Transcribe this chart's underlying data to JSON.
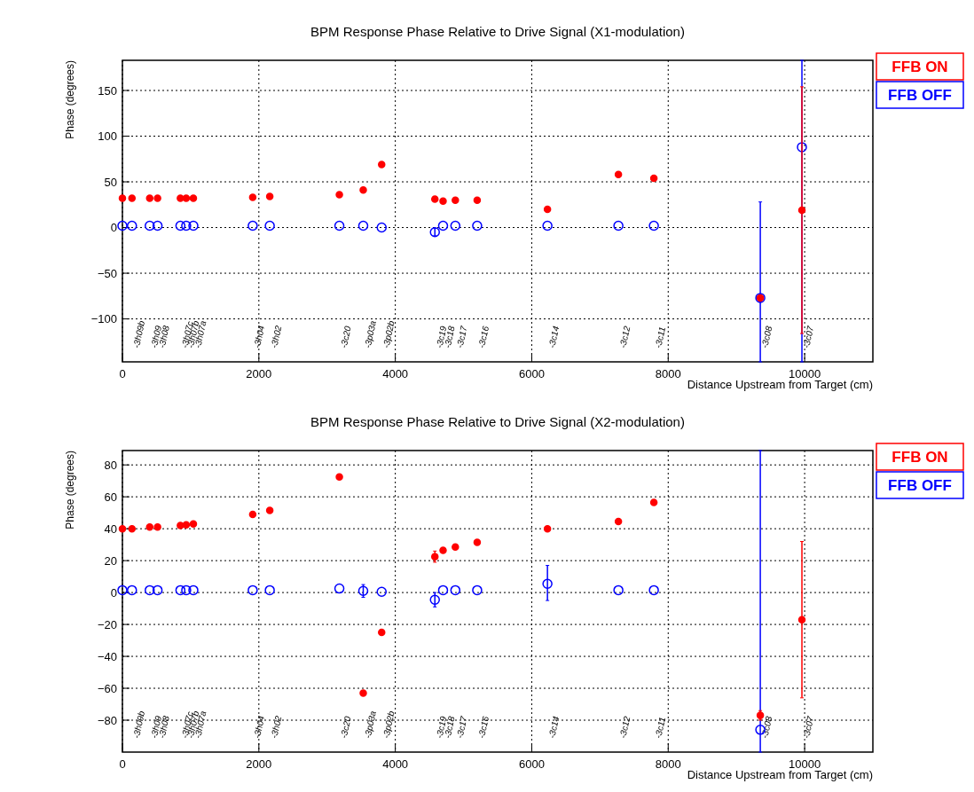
{
  "chart_data": [
    {
      "type": "scatter",
      "title": "BPM Response Phase Relative to Drive Signal (X1-modulation)",
      "xlabel": "Distance Upstream from Target (cm)",
      "ylabel": "Phase (degrees)",
      "xlim": [
        0,
        11000
      ],
      "xticks": [
        0,
        2000,
        4000,
        6000,
        8000,
        10000
      ],
      "ylim": [
        -147,
        183
      ],
      "yticks": [
        -100,
        -50,
        0,
        50,
        100,
        150
      ],
      "grid": true,
      "legend": "top right",
      "marker": "circle",
      "x": [
        0,
        140,
        400,
        515,
        850,
        935,
        1040,
        1910,
        2160,
        3180,
        3530,
        3800,
        4580,
        4700,
        4880,
        5200,
        6230,
        7270,
        7790,
        9350,
        9960
      ],
      "series": [
        {
          "name": "FFB ON",
          "color": "#ff0000",
          "values": [
            32,
            32,
            32,
            32,
            32,
            32,
            32,
            33,
            34,
            36,
            41,
            69,
            31,
            29,
            30,
            30,
            20,
            58,
            54,
            -77,
            19
          ],
          "errors": [
            null,
            null,
            null,
            null,
            null,
            null,
            null,
            null,
            null,
            null,
            null,
            null,
            null,
            null,
            null,
            null,
            null,
            null,
            null,
            null,
            [
              -116,
              154
            ]
          ]
        },
        {
          "name": "FFB OFF",
          "color": "#0000ff",
          "values": [
            2,
            2,
            2,
            2,
            2,
            2,
            2,
            2,
            2,
            2,
            2,
            0,
            -5,
            2,
            2,
            2,
            2,
            2,
            2,
            -77,
            88
          ],
          "errors": [
            null,
            null,
            null,
            null,
            null,
            null,
            null,
            null,
            null,
            null,
            null,
            null,
            [
              -9,
              -1
            ],
            null,
            null,
            null,
            null,
            null,
            null,
            [
              -147,
              28
            ],
            [
              -147,
              183
            ]
          ]
        }
      ],
      "annotations": [
        "-3h09b",
        "-3h09",
        "-3h08",
        "-3h07c",
        "-3h07b",
        "-3h07a",
        "-3h04",
        "-3h02",
        "-3c20",
        "-3p03a",
        "-3p02b",
        "-3c19",
        "-3c18",
        "-3c17",
        "-3c16",
        "-3c14",
        "-3c12",
        "-3c11",
        "-3c08",
        "-3c07"
      ]
    },
    {
      "type": "scatter",
      "title": "BPM Response Phase Relative to Drive Signal (X2-modulation)",
      "xlabel": "Distance Upstream from Target (cm)",
      "ylabel": "Phase (degrees)",
      "xlim": [
        0,
        11000
      ],
      "xticks": [
        0,
        2000,
        4000,
        6000,
        8000,
        10000
      ],
      "ylim": [
        -100,
        89
      ],
      "yticks": [
        -80,
        -60,
        -40,
        -20,
        0,
        20,
        40,
        60,
        80
      ],
      "grid": true,
      "legend": "top right",
      "marker": "circle",
      "x": [
        0,
        140,
        400,
        515,
        850,
        935,
        1040,
        1910,
        2160,
        3180,
        3530,
        3800,
        4580,
        4700,
        4880,
        5200,
        6230,
        7270,
        7790,
        9350,
        9960
      ],
      "series": [
        {
          "name": "FFB ON",
          "color": "#ff0000",
          "values": [
            40,
            40,
            41,
            41,
            42,
            42.5,
            43,
            49,
            51.5,
            72.5,
            -63,
            -25,
            22.5,
            26.5,
            28.5,
            31.5,
            40,
            44.5,
            56.5,
            -77,
            -17
          ],
          "errors": [
            null,
            null,
            null,
            null,
            null,
            null,
            null,
            null,
            null,
            null,
            null,
            null,
            [
              19,
              26
            ],
            null,
            null,
            null,
            null,
            null,
            null,
            [
              -80,
              -74
            ],
            [
              -66,
              32
            ]
          ]
        },
        {
          "name": "FFB OFF",
          "color": "#0000ff",
          "values": [
            1.5,
            1.5,
            1.5,
            1.5,
            1.5,
            1.5,
            1.5,
            1.5,
            1.5,
            2.5,
            1,
            0.5,
            -4.5,
            1.5,
            1.5,
            1.5,
            5.5,
            1.5,
            1.5,
            -86,
            null
          ],
          "errors": [
            null,
            null,
            null,
            null,
            null,
            null,
            null,
            null,
            null,
            null,
            [
              -3,
              5
            ],
            null,
            [
              -9,
              0
            ],
            null,
            null,
            null,
            [
              -5,
              17
            ],
            null,
            null,
            [
              -100,
              89
            ],
            null
          ]
        }
      ],
      "annotations": [
        "-3h09b",
        "-3h09",
        "-3h08",
        "-3h07c",
        "-3h07b",
        "-3h07a",
        "-3h04",
        "-3h02",
        "-3c20",
        "-3p03a",
        "-3p02b",
        "-3c19",
        "-3c18",
        "-3c17",
        "-3c16",
        "-3c14",
        "-3c12",
        "-3c11",
        "-3c08",
        "-3c07"
      ]
    }
  ]
}
